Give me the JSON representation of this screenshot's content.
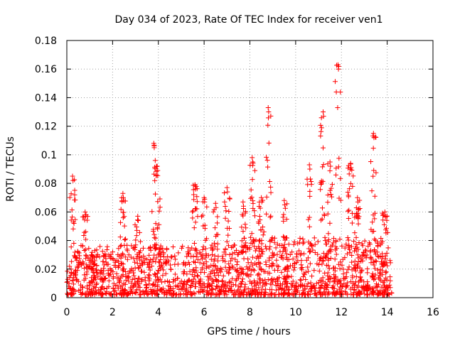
{
  "chart_data": {
    "type": "scatter",
    "title": "Day 034 of 2023, Rate Of TEC Index for receiver ven1",
    "xlabel": "GPS time / hours",
    "ylabel": "ROTI / TECUs",
    "xlim": [
      0,
      16
    ],
    "ylim": [
      0,
      0.18
    ],
    "x_ticks": [
      "0",
      "2",
      "4",
      "6",
      "8",
      "10",
      "12",
      "14",
      "16"
    ],
    "y_ticks": [
      "0",
      "0.02",
      "0.04",
      "0.06",
      "0.08",
      "0.1",
      "0.12",
      "0.14",
      "0.16",
      "0.18"
    ],
    "grid": true,
    "marker": "+",
    "series": [
      {
        "name": "ROTI",
        "color": "#ff0000",
        "x_range": [
          0,
          14.2
        ],
        "num_points": 1600,
        "typical_max": 0.035,
        "bursts": [
          {
            "x": 0.25,
            "peak": 0.085
          },
          {
            "x": 0.8,
            "peak": 0.06
          },
          {
            "x": 1.1,
            "peak": 0.03
          },
          {
            "x": 2.45,
            "peak": 0.073
          },
          {
            "x": 3.1,
            "peak": 0.057
          },
          {
            "x": 3.8,
            "peak": 0.108
          },
          {
            "x": 3.95,
            "peak": 0.092
          },
          {
            "x": 5.6,
            "peak": 0.079
          },
          {
            "x": 6.0,
            "peak": 0.07
          },
          {
            "x": 6.5,
            "peak": 0.066
          },
          {
            "x": 7.0,
            "peak": 0.077
          },
          {
            "x": 7.7,
            "peak": 0.067
          },
          {
            "x": 8.1,
            "peak": 0.098
          },
          {
            "x": 8.5,
            "peak": 0.07
          },
          {
            "x": 8.8,
            "peak": 0.133
          },
          {
            "x": 9.5,
            "peak": 0.068
          },
          {
            "x": 10.6,
            "peak": 0.093
          },
          {
            "x": 11.2,
            "peak": 0.13
          },
          {
            "x": 11.5,
            "peak": 0.095
          },
          {
            "x": 11.85,
            "peak": 0.163
          },
          {
            "x": 12.4,
            "peak": 0.094
          },
          {
            "x": 12.7,
            "peak": 0.07
          },
          {
            "x": 13.4,
            "peak": 0.115
          },
          {
            "x": 13.9,
            "peak": 0.06
          }
        ]
      }
    ]
  }
}
